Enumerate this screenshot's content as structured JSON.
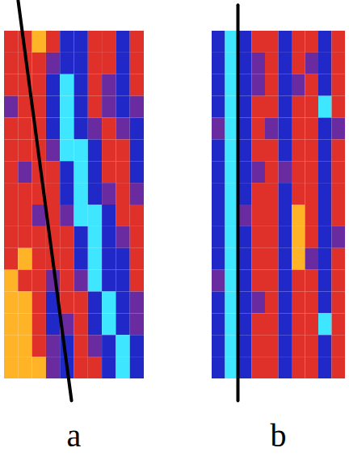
{
  "chart_data": [
    {
      "type": "heatmap",
      "label": "a",
      "tick_labels": false,
      "xlim": [
        0,
        10
      ],
      "ylim": [
        0,
        16
      ],
      "zlim": [
        0,
        4
      ],
      "guide_line": {
        "x": [
          0.98,
          4.8
        ],
        "y": [
          -1.4,
          17
        ]
      },
      "cells": [
        [
          3,
          3,
          4,
          3,
          1,
          1,
          3,
          3,
          1,
          3
        ],
        [
          3,
          3,
          3,
          2,
          1,
          1,
          3,
          3,
          1,
          3
        ],
        [
          3,
          3,
          3,
          1,
          0,
          1,
          3,
          2,
          1,
          3
        ],
        [
          2,
          3,
          3,
          1,
          0,
          1,
          3,
          2,
          1,
          2
        ],
        [
          3,
          3,
          3,
          1,
          0,
          1,
          2,
          3,
          2,
          1
        ],
        [
          3,
          3,
          3,
          2,
          0,
          0,
          1,
          3,
          3,
          1
        ],
        [
          3,
          2,
          3,
          3,
          1,
          0,
          1,
          3,
          3,
          1
        ],
        [
          3,
          3,
          3,
          3,
          1,
          0,
          1,
          2,
          3,
          2
        ],
        [
          3,
          3,
          2,
          3,
          2,
          0,
          0,
          1,
          3,
          3
        ],
        [
          3,
          3,
          3,
          3,
          3,
          1,
          0,
          1,
          2,
          3
        ],
        [
          3,
          4,
          3,
          3,
          3,
          1,
          0,
          1,
          1,
          3
        ],
        [
          4,
          3,
          3,
          2,
          3,
          2,
          0,
          1,
          1,
          3
        ],
        [
          4,
          4,
          3,
          1,
          3,
          3,
          1,
          0,
          1,
          2
        ],
        [
          4,
          4,
          3,
          1,
          2,
          3,
          1,
          0,
          1,
          2
        ],
        [
          4,
          4,
          3,
          2,
          1,
          3,
          2,
          1,
          0,
          1
        ],
        [
          4,
          4,
          4,
          2,
          1,
          3,
          3,
          1,
          0,
          1
        ]
      ]
    },
    {
      "type": "heatmap",
      "label": "b",
      "tick_labels": false,
      "xlim": [
        0,
        10
      ],
      "ylim": [
        0,
        16
      ],
      "zlim": [
        0,
        4
      ],
      "guide_line": {
        "x": [
          1.94,
          1.94
        ],
        "y": [
          -1.2,
          17
        ]
      },
      "cells": [
        [
          1,
          0,
          1,
          3,
          3,
          1,
          3,
          3,
          1,
          3
        ],
        [
          1,
          0,
          1,
          2,
          3,
          1,
          3,
          2,
          1,
          3
        ],
        [
          1,
          0,
          1,
          2,
          3,
          1,
          2,
          3,
          1,
          3
        ],
        [
          1,
          0,
          1,
          3,
          3,
          1,
          3,
          3,
          0,
          3
        ],
        [
          2,
          0,
          1,
          3,
          2,
          1,
          3,
          3,
          1,
          2
        ],
        [
          1,
          0,
          1,
          3,
          3,
          1,
          3,
          3,
          1,
          3
        ],
        [
          1,
          0,
          1,
          2,
          3,
          2,
          3,
          3,
          1,
          3
        ],
        [
          1,
          0,
          1,
          3,
          3,
          1,
          3,
          3,
          1,
          3
        ],
        [
          1,
          0,
          2,
          3,
          3,
          1,
          4,
          3,
          1,
          3
        ],
        [
          1,
          0,
          1,
          3,
          3,
          1,
          4,
          3,
          1,
          2
        ],
        [
          1,
          0,
          1,
          3,
          3,
          1,
          4,
          2,
          1,
          3
        ],
        [
          2,
          0,
          1,
          3,
          3,
          1,
          3,
          3,
          1,
          3
        ],
        [
          1,
          0,
          1,
          2,
          3,
          1,
          3,
          3,
          1,
          3
        ],
        [
          1,
          0,
          1,
          3,
          3,
          1,
          3,
          3,
          0,
          3
        ],
        [
          1,
          0,
          1,
          3,
          3,
          1,
          3,
          3,
          1,
          3
        ],
        [
          1,
          0,
          1,
          3,
          3,
          1,
          3,
          3,
          1,
          3
        ]
      ]
    }
  ]
}
